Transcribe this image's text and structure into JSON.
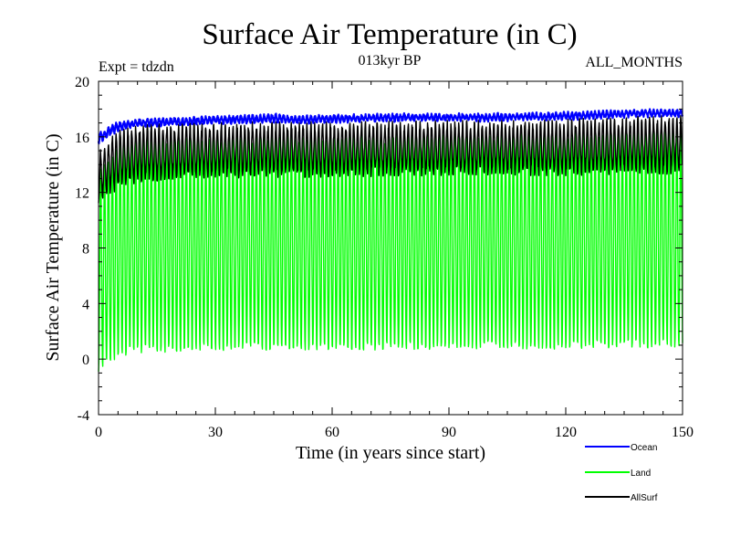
{
  "chart_data": {
    "type": "line",
    "title": "Surface Air Temperature (in C)",
    "subtitle": "013kyr BP",
    "left_note": "Expt = tdzdn",
    "right_note": "ALL_MONTHS",
    "xlabel": "Time (in years since start)",
    "ylabel": "Surface Air Temperature (in C)",
    "xlim": [
      0,
      150
    ],
    "ylim": [
      -4,
      20
    ],
    "xticks": [
      0,
      30,
      60,
      90,
      120,
      150
    ],
    "yticks": [
      -4,
      0,
      4,
      8,
      12,
      16,
      20
    ],
    "xtick_labels": [
      "0",
      "30",
      "60",
      "90",
      "120",
      "150"
    ],
    "ytick_labels": [
      "-4",
      "0",
      "4",
      "8",
      "12",
      "16",
      "20"
    ],
    "x_minor_step": 5,
    "y_minor_step": 1,
    "grid": false,
    "legend_position": "bottom-right",
    "series": [
      {
        "name": "Ocean",
        "color": "#0000ff",
        "kind": "seasonal-band",
        "trend_years": [
          0,
          5,
          10,
          20,
          30,
          45,
          50,
          60,
          80,
          100,
          120,
          140,
          150
        ],
        "trend_max": [
          16.2,
          17.0,
          17.2,
          17.3,
          17.4,
          17.6,
          17.4,
          17.5,
          17.6,
          17.6,
          17.7,
          17.9,
          17.9
        ],
        "trend_min": [
          15.6,
          16.5,
          16.8,
          16.9,
          17.0,
          17.1,
          17.0,
          17.1,
          17.2,
          17.2,
          17.3,
          17.5,
          17.5
        ]
      },
      {
        "name": "Land",
        "color": "#00ff00",
        "kind": "seasonal-cycle",
        "trend_years": [
          0,
          5,
          10,
          20,
          30,
          60,
          90,
          120,
          150
        ],
        "trend_max": [
          13.5,
          15.5,
          16.0,
          16.0,
          16.0,
          16.0,
          16.2,
          16.3,
          16.5
        ],
        "trend_min": [
          -0.8,
          0.2,
          0.5,
          0.6,
          0.7,
          0.7,
          0.8,
          0.8,
          0.9
        ]
      },
      {
        "name": "AllSurf",
        "color": "#000000",
        "kind": "seasonal-cycle",
        "trend_years": [
          0,
          5,
          10,
          20,
          30,
          60,
          90,
          120,
          150
        ],
        "trend_max": [
          14.8,
          16.2,
          16.6,
          16.7,
          16.8,
          16.8,
          16.9,
          17.0,
          17.3
        ],
        "trend_min": [
          11.5,
          12.5,
          13.0,
          13.2,
          13.3,
          13.4,
          13.5,
          13.5,
          13.6
        ]
      }
    ]
  }
}
